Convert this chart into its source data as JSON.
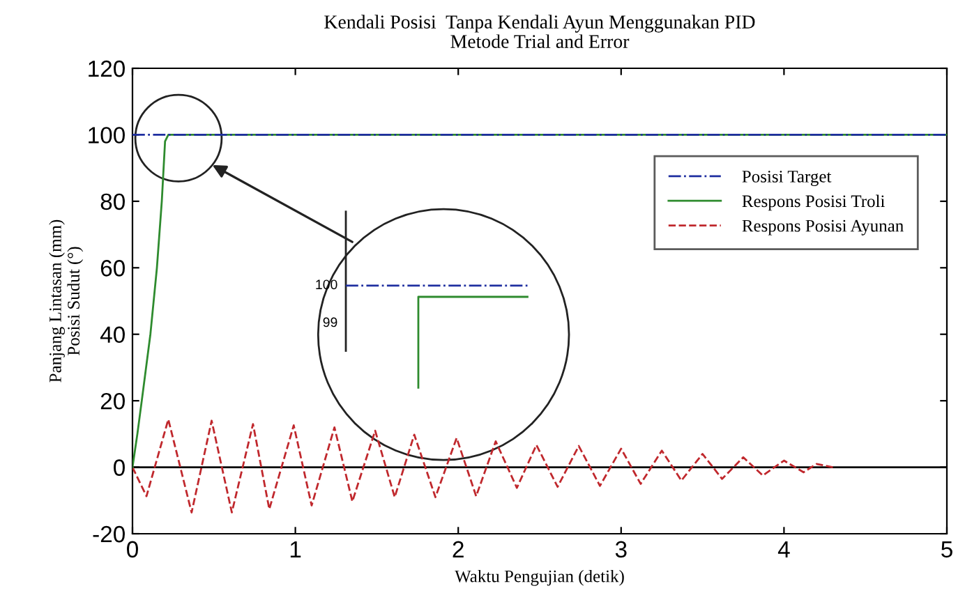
{
  "chart_data": {
    "type": "line",
    "title": "Kendali Posisi  Tanpa Kendali Ayun Menggunakan PID",
    "subtitle": "Metode Trial and Error",
    "xlabel": "Waktu Pengujian (detik)",
    "ylabel": "Panjang Lintasan (mm)\nPosisi Sudut (°)",
    "xlim": [
      0,
      5
    ],
    "ylim": [
      -20,
      120
    ],
    "xticks": [
      0,
      1,
      2,
      3,
      4,
      5
    ],
    "yticks": [
      -20,
      0,
      20,
      40,
      60,
      80,
      100,
      120
    ],
    "grid": false,
    "legend": "top right",
    "series": [
      {
        "name": "Posisi Target",
        "color": "#1f2fa0",
        "line_style": "dashdot",
        "x": [
          0,
          5
        ],
        "values": [
          100,
          100
        ]
      },
      {
        "name": "Respons Posisi Troli",
        "color": "#2e8b2e",
        "line_style": "solid",
        "x": [
          0,
          0.03,
          0.057,
          0.11,
          0.15,
          0.18,
          0.2,
          0.22,
          5
        ],
        "values": [
          0,
          10,
          20,
          40,
          60,
          80,
          98,
          100,
          100
        ]
      },
      {
        "name": "Respons Posisi Ayunan",
        "color": "#c0282d",
        "line_style": "dashed",
        "x": [
          0,
          0.086,
          0.22,
          0.363,
          0.486,
          0.61,
          0.74,
          0.84,
          0.99,
          1.1,
          1.24,
          1.35,
          1.49,
          1.61,
          1.73,
          1.86,
          1.99,
          2.11,
          2.23,
          2.36,
          2.48,
          2.61,
          2.74,
          2.87,
          3.0,
          3.12,
          3.25,
          3.37,
          3.5,
          3.62,
          3.75,
          3.87,
          4.0,
          4.12,
          4.2,
          4.3
        ],
        "values": [
          0,
          -8.7,
          14.4,
          -13.6,
          14,
          -13.6,
          13,
          -12.6,
          12.6,
          -11.5,
          12,
          -10.3,
          11,
          -9,
          9.8,
          -9,
          8.8,
          -8.7,
          7.8,
          -6.2,
          6.7,
          -5.9,
          6.4,
          -5.6,
          5.6,
          -5,
          5,
          -4,
          4,
          -3.5,
          3,
          -2.5,
          2,
          -1.5,
          1,
          0
        ]
      }
    ],
    "ref_lines": [
      {
        "axis": "y",
        "value": 0,
        "color": "#000000",
        "line_style": "solid"
      }
    ],
    "annotations": [
      "100",
      "99"
    ]
  }
}
